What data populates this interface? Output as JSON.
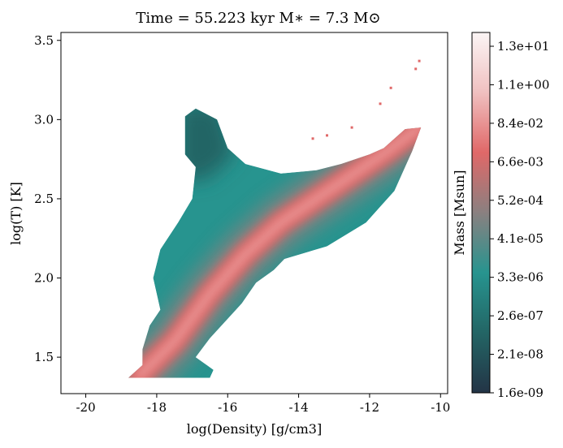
{
  "chart_data": {
    "type": "heatmap",
    "title": "Time = 55.223 kyr    M$_*$ = 7.3 M$_\\odot$",
    "title_display": "Time = 55.223 kyr    M∗ = 7.3 M⊙",
    "xlabel": "log(Density) [g/cm3]",
    "ylabel": "log(T) [K]",
    "xlim": [
      -20.7,
      -9.8
    ],
    "ylim": [
      1.27,
      3.55
    ],
    "x_ticks": [
      -20,
      -18,
      -16,
      -14,
      -12,
      -10
    ],
    "x_tick_labels": [
      "-20",
      "-18",
      "-16",
      "-14",
      "-12",
      "-10"
    ],
    "y_ticks": [
      1.5,
      2.0,
      2.5,
      3.0,
      3.5
    ],
    "y_tick_labels": [
      "1.5",
      "2.0",
      "2.5",
      "3.0",
      "3.5"
    ],
    "grid": false,
    "colorbar": {
      "label": "Mass [Msun]",
      "scale": "log",
      "tick_labels": [
        "1.6e-09",
        "2.1e-08",
        "2.6e-07",
        "3.3e-06",
        "4.1e-05",
        "5.2e-04",
        "6.6e-03",
        "8.4e-02",
        "1.1e+00",
        "1.3e+01"
      ],
      "colors": [
        "#233446",
        "#236565",
        "#27948f",
        "#8a8080",
        "#e06868",
        "#f0c0c0",
        "#fbf5f5"
      ]
    },
    "ridges": [
      {
        "name_note": "dense high-mass track",
        "points": [
          [
            -18.5,
            1.38
          ],
          [
            -17.5,
            1.6
          ],
          [
            -16.5,
            1.9
          ],
          [
            -15.5,
            2.15
          ],
          [
            -14.5,
            2.35
          ],
          [
            -13.5,
            2.5
          ],
          [
            -12.5,
            2.65
          ],
          [
            -11.5,
            2.8
          ],
          [
            -10.6,
            2.95
          ]
        ]
      }
    ],
    "region_outline": [
      [
        -18.8,
        1.37
      ],
      [
        -16.5,
        1.37
      ],
      [
        -16.4,
        1.42
      ],
      [
        -16.9,
        1.5
      ],
      [
        -16.5,
        1.62
      ],
      [
        -15.6,
        1.84
      ],
      [
        -15.2,
        1.97
      ],
      [
        -14.7,
        2.05
      ],
      [
        -14.4,
        2.12
      ],
      [
        -13.2,
        2.2
      ],
      [
        -12.1,
        2.35
      ],
      [
        -11.3,
        2.55
      ],
      [
        -10.8,
        2.8
      ],
      [
        -10.55,
        2.95
      ],
      [
        -11.0,
        2.94
      ],
      [
        -11.6,
        2.82
      ],
      [
        -12.0,
        2.78
      ],
      [
        -12.8,
        2.72
      ],
      [
        -13.5,
        2.68
      ],
      [
        -14.5,
        2.66
      ],
      [
        -15.5,
        2.72
      ],
      [
        -16.0,
        2.82
      ],
      [
        -16.3,
        3.0
      ],
      [
        -16.9,
        3.07
      ],
      [
        -17.2,
        3.02
      ],
      [
        -17.2,
        2.78
      ],
      [
        -16.9,
        2.7
      ],
      [
        -17.0,
        2.5
      ],
      [
        -17.4,
        2.35
      ],
      [
        -17.9,
        2.18
      ],
      [
        -18.1,
        2.0
      ],
      [
        -17.9,
        1.8
      ],
      [
        -18.2,
        1.7
      ],
      [
        -18.4,
        1.55
      ],
      [
        -18.4,
        1.45
      ]
    ],
    "scatter_points": [
      [
        -10.6,
        3.37
      ],
      [
        -10.7,
        3.32
      ],
      [
        -11.4,
        3.2
      ],
      [
        -11.7,
        3.1
      ],
      [
        -12.5,
        2.95
      ],
      [
        -13.2,
        2.9
      ],
      [
        -13.6,
        2.88
      ]
    ]
  }
}
